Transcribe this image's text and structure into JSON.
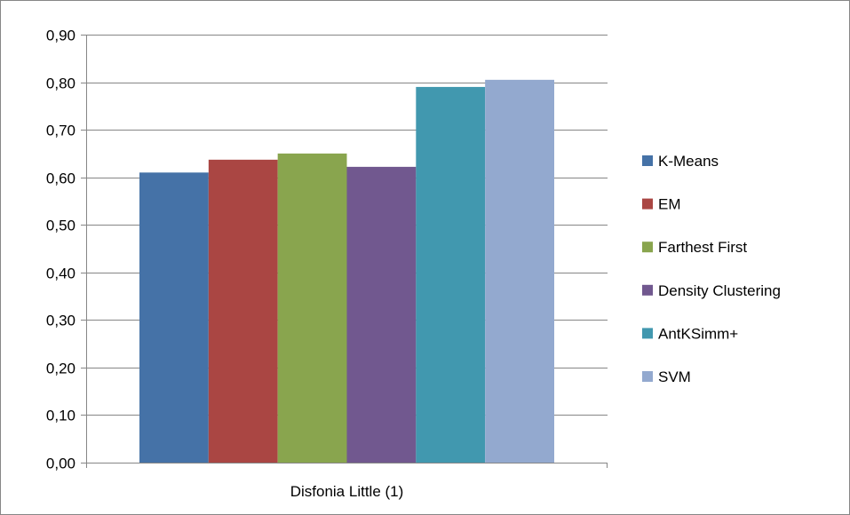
{
  "chart_data": {
    "type": "bar",
    "categories": [
      "Disfonia Little (1)"
    ],
    "series": [
      {
        "name": "K-Means",
        "values": [
          0.61
        ],
        "color": "#4572A7"
      },
      {
        "name": "EM",
        "values": [
          0.637
        ],
        "color": "#AA4643"
      },
      {
        "name": "Farthest First",
        "values": [
          0.65
        ],
        "color": "#89A54E"
      },
      {
        "name": "Density Clustering",
        "values": [
          0.622
        ],
        "color": "#71588F"
      },
      {
        "name": "AntKSimm+",
        "values": [
          0.79
        ],
        "color": "#4198AF"
      },
      {
        "name": "SVM",
        "values": [
          0.805
        ],
        "color": "#93A9CF"
      }
    ],
    "ylim": [
      0,
      0.9
    ],
    "yticks": [
      "0,00",
      "0,10",
      "0,20",
      "0,30",
      "0,40",
      "0,50",
      "0,60",
      "0,70",
      "0,80",
      "0,90"
    ],
    "grid": true,
    "legend_position": "right"
  }
}
